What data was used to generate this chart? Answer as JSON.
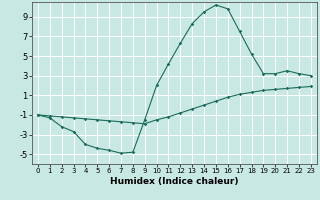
{
  "xlabel": "Humidex (Indice chaleur)",
  "xlim": [
    -0.5,
    23.5
  ],
  "ylim": [
    -6,
    10.5
  ],
  "yticks": [
    -5,
    -3,
    -1,
    1,
    3,
    5,
    7,
    9
  ],
  "xticks": [
    0,
    1,
    2,
    3,
    4,
    5,
    6,
    7,
    8,
    9,
    10,
    11,
    12,
    13,
    14,
    15,
    16,
    17,
    18,
    19,
    20,
    21,
    22,
    23
  ],
  "bg_color": "#c8e8e4",
  "line_color": "#1a6b5a",
  "grid_color": "#ffffff",
  "wavy_x": [
    0,
    1,
    2,
    3,
    4,
    5,
    6,
    7,
    8,
    9,
    10,
    11,
    12,
    13,
    14,
    15,
    16,
    17,
    18,
    19,
    20,
    21,
    22,
    23
  ],
  "wavy_y": [
    -1.0,
    -1.3,
    -2.2,
    -2.7,
    -4.0,
    -4.4,
    -4.6,
    -4.9,
    -4.8,
    -1.5,
    2.0,
    4.2,
    6.3,
    8.3,
    9.5,
    10.2,
    9.8,
    7.5,
    5.2,
    3.2,
    3.2,
    3.5,
    3.2,
    3.0
  ],
  "straight_x": [
    0,
    1,
    2,
    3,
    4,
    5,
    6,
    7,
    8,
    9,
    10,
    11,
    12,
    13,
    14,
    15,
    16,
    17,
    18,
    19,
    20,
    21,
    22,
    23
  ],
  "straight_y": [
    -1.0,
    -1.1,
    -1.2,
    -1.3,
    -1.4,
    -1.5,
    -1.6,
    -1.7,
    -1.8,
    -1.9,
    -1.5,
    -1.2,
    -0.8,
    -0.4,
    0.0,
    0.4,
    0.8,
    1.1,
    1.3,
    1.5,
    1.6,
    1.7,
    1.8,
    1.9
  ]
}
